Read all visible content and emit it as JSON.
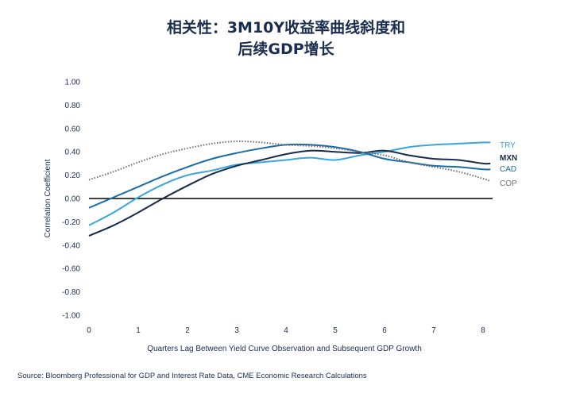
{
  "title_line1": "相关性：3M10Y收益率曲线斜度和",
  "title_line2": "后续GDP增长",
  "source": "Source: Bloomberg Professional for GDP and Interest Rate Data, CME Economic Research Calculations",
  "chart_data": {
    "type": "line",
    "xlabel": "Quarters Lag Between Yield Curve Observation and Subsequent GDP Growth",
    "ylabel": "Correlation Coefficient",
    "xlim": [
      0,
      8.15
    ],
    "ylim": [
      -1.0,
      1.0
    ],
    "xticks": [
      "0",
      "1",
      "2",
      "3",
      "4",
      "5",
      "6",
      "7",
      "8"
    ],
    "yticks": [
      "1.00",
      "0.80",
      "0.60",
      "0.40",
      "0.20",
      "0.00",
      "-0.20",
      "-0.40",
      "-0.60",
      "-0.80",
      "-1.00"
    ],
    "legend": "right-end-labels",
    "series": [
      {
        "name": "TRY",
        "color": "#3aa6dc",
        "dash": false,
        "x": [
          0,
          0.5,
          1,
          1.5,
          2,
          2.5,
          3,
          3.5,
          4,
          4.5,
          5,
          5.5,
          6,
          6.5,
          7,
          7.5,
          8,
          8.15
        ],
        "y": [
          -0.23,
          -0.12,
          0.01,
          0.12,
          0.2,
          0.24,
          0.29,
          0.31,
          0.33,
          0.35,
          0.33,
          0.37,
          0.4,
          0.44,
          0.46,
          0.47,
          0.48,
          0.48
        ]
      },
      {
        "name": "MXN",
        "color": "#162a4a",
        "dash": false,
        "x": [
          0,
          0.5,
          1,
          1.5,
          2,
          2.5,
          3,
          3.5,
          4,
          4.5,
          5,
          5.5,
          6,
          6.5,
          7,
          7.5,
          8,
          8.15
        ],
        "y": [
          -0.32,
          -0.23,
          -0.12,
          0.0,
          0.11,
          0.21,
          0.28,
          0.33,
          0.38,
          0.41,
          0.4,
          0.39,
          0.41,
          0.37,
          0.34,
          0.33,
          0.3,
          0.3
        ]
      },
      {
        "name": "CAD",
        "color": "#1a6ca8",
        "dash": false,
        "x": [
          0,
          0.5,
          1,
          1.5,
          2,
          2.5,
          3,
          3.5,
          4,
          4.5,
          5,
          5.5,
          6,
          6.5,
          7,
          7.5,
          8,
          8.15
        ],
        "y": [
          -0.08,
          0.01,
          0.1,
          0.19,
          0.27,
          0.34,
          0.39,
          0.43,
          0.46,
          0.46,
          0.44,
          0.4,
          0.34,
          0.31,
          0.28,
          0.27,
          0.25,
          0.25
        ]
      },
      {
        "name": "COP",
        "color": "#6f6f6f",
        "dash": true,
        "x": [
          0,
          0.5,
          1,
          1.5,
          2,
          2.5,
          3,
          3.5,
          4,
          4.5,
          5,
          5.5,
          6,
          6.5,
          7,
          7.5,
          8,
          8.15
        ],
        "y": [
          0.16,
          0.23,
          0.31,
          0.38,
          0.43,
          0.47,
          0.49,
          0.48,
          0.46,
          0.45,
          0.43,
          0.4,
          0.37,
          0.31,
          0.27,
          0.23,
          0.17,
          0.15
        ]
      }
    ]
  }
}
